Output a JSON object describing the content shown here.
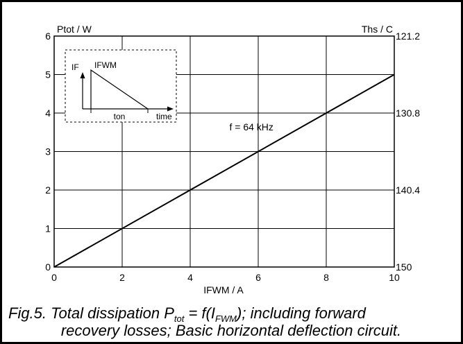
{
  "chart_data": {
    "type": "line",
    "title": "",
    "xlabel": "IFWM / A",
    "ylabel": "Ptot / W",
    "y2label": "Ths / C",
    "xlim": [
      0,
      10
    ],
    "ylim": [
      0,
      6
    ],
    "xticks": [
      "0",
      "2",
      "4",
      "6",
      "8",
      "10"
    ],
    "yticks": [
      "0",
      "1",
      "2",
      "3",
      "4",
      "5",
      "6"
    ],
    "y2ticks": [
      "150",
      "140.4",
      "130.8",
      "121.2"
    ],
    "y2tick_at_y": [
      0,
      2,
      4,
      6
    ],
    "grid": true,
    "series": [
      {
        "name": "",
        "x": [
          0,
          10
        ],
        "y": [
          0,
          5
        ]
      }
    ],
    "annotations": [
      {
        "text": "f = 64 kHz",
        "x": 5.8,
        "y": 3.55
      }
    ],
    "inset": {
      "if_label": "IF",
      "ifwm_label": "IFWM",
      "ton_label": "ton",
      "time_label": "time"
    }
  },
  "caption": {
    "line1_a": "Fig.5.  Total dissipation P",
    "line1_sub1": "tot",
    "line1_b": " = f(I",
    "line1_sub2": "FWM",
    "line1_c": "); including forward",
    "line2": "recovery losses; Basic horizontal deflection circuit."
  }
}
